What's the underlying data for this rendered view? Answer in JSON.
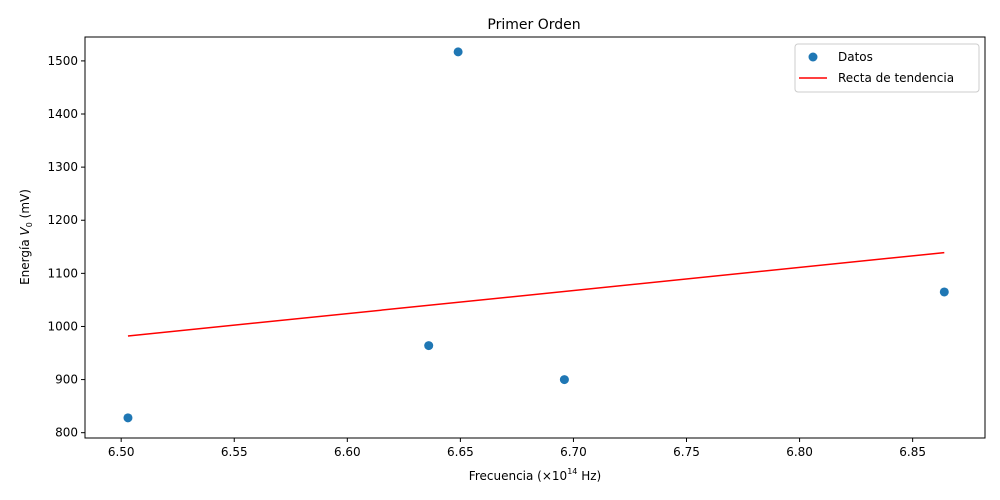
{
  "chart_data": {
    "type": "scatter",
    "title": "Primer Orden",
    "xlabel": {
      "prefix": "Frecuencia (×10",
      "superscript": "14",
      "suffix": " Hz)"
    },
    "ylabel": {
      "prefix": "Energía ",
      "variable": "V",
      "subscript": "0",
      "suffix": " (mV)"
    },
    "xlim": [
      6.484,
      6.882
    ],
    "ylim": [
      790,
      1545
    ],
    "x_ticks": [
      6.5,
      6.55,
      6.6,
      6.65,
      6.7,
      6.75,
      6.8,
      6.85
    ],
    "x_tick_labels": [
      "6.50",
      "6.55",
      "6.60",
      "6.65",
      "6.70",
      "6.75",
      "6.80",
      "6.85"
    ],
    "y_ticks": [
      800,
      900,
      1000,
      1100,
      1200,
      1300,
      1400,
      1500
    ],
    "y_tick_labels": [
      "800",
      "900",
      "1000",
      "1100",
      "1200",
      "1300",
      "1400",
      "1500"
    ],
    "grid": false,
    "legend_position": "top-right",
    "series": [
      {
        "name": "Datos",
        "kind": "scatter",
        "color": "#1f77b4",
        "x": [
          6.503,
          6.636,
          6.649,
          6.696,
          6.864
        ],
        "y": [
          828,
          964,
          1517,
          900,
          1065
        ]
      },
      {
        "name": "Recta de tendencia",
        "kind": "line",
        "color": "#ff0000",
        "x": [
          6.503,
          6.864
        ],
        "y": [
          982,
          1139
        ]
      }
    ]
  }
}
